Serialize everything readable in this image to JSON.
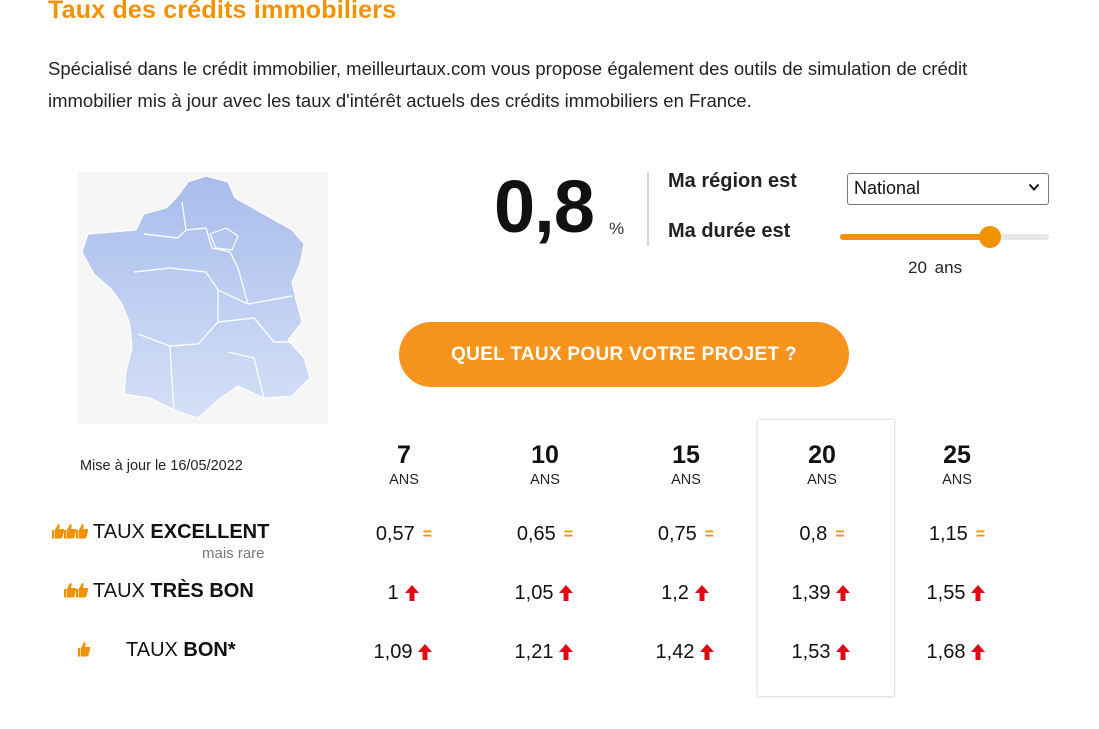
{
  "header": {
    "title": "Taux des crédits immobiliers",
    "intro": "Spécialisé dans le crédit immobilier, meilleurtaux.com vous propose également des outils de simulation de crédit immobilier mis à jour avec les taux d'intérêt actuels des crédits immobiliers en France."
  },
  "map": {
    "icon": "france-map-icon"
  },
  "rate": {
    "value": "0,8",
    "unit": "%"
  },
  "controls": {
    "region_label": "Ma région est",
    "region_selected": "National",
    "duree_label": "Ma durée est",
    "duree_value": "20",
    "duree_unit": "ans",
    "duree_fraction": 0.72
  },
  "cta": {
    "label": "QUEL TAUX POUR VOTRE PROJET ?"
  },
  "table": {
    "updated": "Mise à jour le 16/05/2022",
    "columns": [
      {
        "num": "7",
        "unit": "ANS"
      },
      {
        "num": "10",
        "unit": "ANS"
      },
      {
        "num": "15",
        "unit": "ANS"
      },
      {
        "num": "20",
        "unit": "ANS"
      },
      {
        "num": "25",
        "unit": "ANS"
      }
    ],
    "rows": [
      {
        "prefix": "TAUX ",
        "strong": "EXCELLENT",
        "sub": "mais rare",
        "thumbs": 3,
        "values": [
          "0,57",
          "0,65",
          "0,75",
          "0,8",
          "1,15"
        ],
        "trend": "equal"
      },
      {
        "prefix": "TAUX ",
        "strong": "TRÈS BON",
        "sub": "",
        "thumbs": 2,
        "values": [
          "1",
          "1,05",
          "1,2",
          "1,39",
          "1,55"
        ],
        "trend": "up"
      },
      {
        "prefix": "TAUX ",
        "strong": "BON*",
        "sub": "",
        "thumbs": 1,
        "values": [
          "1,09",
          "1,21",
          "1,42",
          "1,53",
          "1,68"
        ],
        "trend": "up"
      }
    ]
  },
  "colors": {
    "accent": "#f39200",
    "cta": "#f7941d",
    "trend_up": "#e30613",
    "map": "#b8c9ee"
  }
}
